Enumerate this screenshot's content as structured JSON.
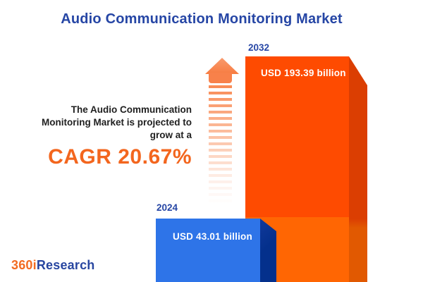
{
  "title": "Audio Communication Monitoring Market",
  "promo": {
    "line1": "The Audio Communication",
    "line2": "Monitoring Market is projected to",
    "line3": "grow at a",
    "cagr": "CAGR 20.67%"
  },
  "chart_data": {
    "type": "bar",
    "title": "Audio Communication Monitoring Market",
    "categories": [
      "2024",
      "2032"
    ],
    "values": [
      43.01,
      193.39
    ],
    "unit": "USD billion",
    "data_labels": [
      "USD 43.01 billion",
      "USD 193.39 billion"
    ],
    "cagr_percent": 20.67,
    "xlabel": "",
    "ylabel": "",
    "grid": false,
    "legend": "none",
    "bar_style": "3d",
    "annotation": "The Audio Communication Monitoring Market is projected to grow at a CAGR 20.67%"
  },
  "bars": [
    {
      "year": "2024",
      "label": "USD 43.01 billion",
      "front_color": "#2E74E8",
      "side_color": "#04308C"
    },
    {
      "year": "2032",
      "label": "USD 193.39 billion",
      "front_color": "#FE4B01",
      "side_color": "#DB3E02"
    }
  ],
  "logo": {
    "part1": "360i",
    "part2": "Research"
  },
  "colors": {
    "title_blue": "#2646A5",
    "cagr_orange": "#F3661E",
    "arrow_orange": "#F8814A",
    "bar2024_front": "#2E74E8",
    "bar2024_side": "#04308C",
    "bar2032_front_top": "#FE4B01",
    "bar2032_front_bottom": "#FF6603",
    "bar2032_side_top": "#DB3E02",
    "bar2032_side_bottom": "#E15901",
    "background": "#FFFFFF"
  }
}
